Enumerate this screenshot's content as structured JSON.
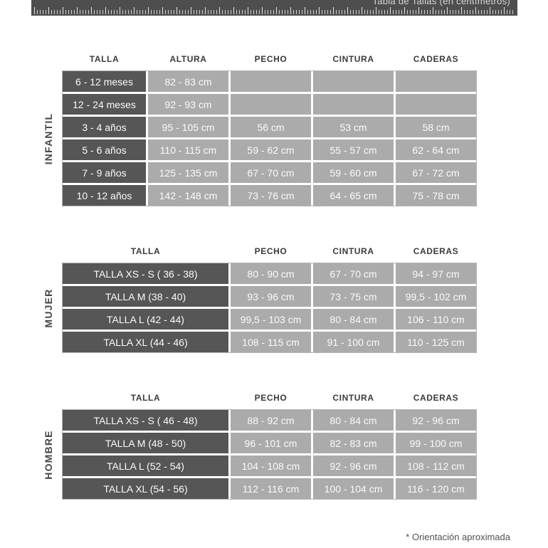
{
  "page": {
    "title_bar": {
      "label": "Tabla de Tallas (en centímetros)"
    },
    "footnote": "* Orientación aproximada"
  },
  "colors": {
    "ruler_bar": "#4e4e4e",
    "dark_cell": "#565656",
    "light_cell": "#ababab",
    "cell_text": "#fbfbfb",
    "header_text": "#3b3b3b"
  },
  "chart_data": {
    "type": "table",
    "title": "Tabla de Tallas (en centímetros)"
  },
  "tables": [
    {
      "group": "INFANTIL",
      "headers": [
        "TALLA",
        "ALTURA",
        "PECHO",
        "CINTURA",
        "CADERAS"
      ],
      "rows": [
        [
          "6 - 12 meses",
          "82 - 83 cm",
          "",
          "",
          ""
        ],
        [
          "12 - 24 meses",
          "92 - 93 cm",
          "",
          "",
          ""
        ],
        [
          "3 - 4 años",
          "95 - 105 cm",
          "56 cm",
          "53 cm",
          "58 cm"
        ],
        [
          "5 - 6 años",
          "110 - 115 cm",
          "59 - 62 cm",
          "55 - 57 cm",
          "62 - 64 cm"
        ],
        [
          "7 - 9 años",
          "125 - 135 cm",
          "67 - 70 cm",
          "59 - 60 cm",
          "67 - 72 cm"
        ],
        [
          "10 - 12 años",
          "142 - 148 cm",
          "73 - 76 cm",
          "64 - 65 cm",
          "75 - 78 cm"
        ]
      ]
    },
    {
      "group": "MUJER",
      "headers": [
        "TALLA",
        "PECHO",
        "CINTURA",
        "CADERAS"
      ],
      "rows": [
        [
          "TALLA XS - S ( 36 - 38)",
          "80 - 90 cm",
          "67 - 70 cm",
          "94 - 97 cm"
        ],
        [
          "TALLA M (38 - 40)",
          "93 - 96 cm",
          "73 - 75 cm",
          "99,5 - 102 cm"
        ],
        [
          "TALLA L (42 - 44)",
          "99,5 - 103 cm",
          "80 - 84 cm",
          "106 - 110 cm"
        ],
        [
          "TALLA XL (44 - 46)",
          "108 - 115 cm",
          "91 - 100 cm",
          "110 - 125 cm"
        ]
      ]
    },
    {
      "group": "HOMBRE",
      "headers": [
        "TALLA",
        "PECHO",
        "CINTURA",
        "CADERAS"
      ],
      "rows": [
        [
          "TALLA XS - S ( 46 - 48)",
          "88 - 92 cm",
          "80 - 84 cm",
          "92 - 96 cm"
        ],
        [
          "TALLA M (48 - 50)",
          "96 - 101 cm",
          "82 - 83 cm",
          "99 - 100 cm"
        ],
        [
          "TALLA L (52 - 54)",
          "104 - 108 cm",
          "92 - 96 cm",
          "108 - 112 cm"
        ],
        [
          "TALLA XL (54 - 56)",
          "112 - 116 cm",
          "100 - 104 cm",
          "116 - 120 cm"
        ]
      ]
    }
  ]
}
